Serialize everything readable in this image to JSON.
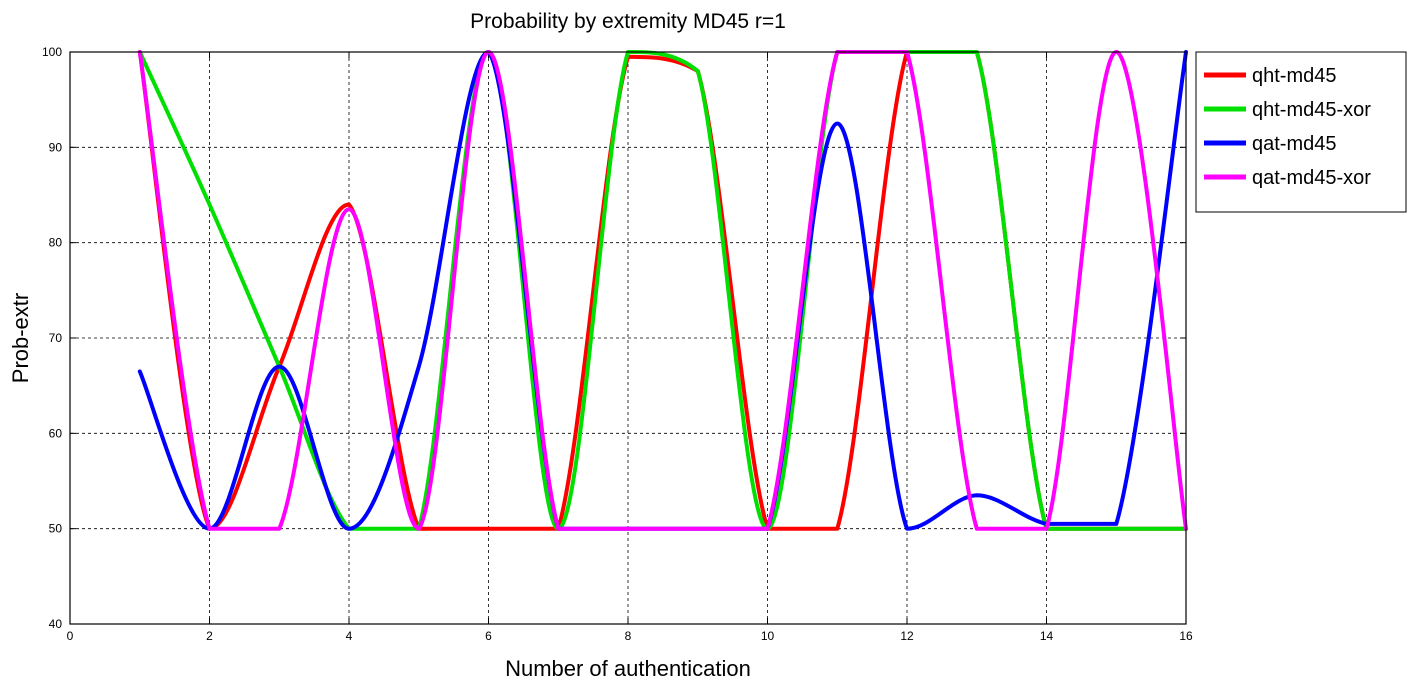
{
  "chart_data": {
    "type": "line",
    "title": "Probability by extremity  MD45 r=1",
    "xlabel": "Number of authentication",
    "ylabel": "Prob-extr",
    "xlim": [
      0,
      16
    ],
    "ylim": [
      40,
      100
    ],
    "xticks": [
      0,
      2,
      4,
      6,
      8,
      10,
      12,
      14,
      16
    ],
    "yticks": [
      40,
      50,
      60,
      70,
      80,
      90,
      100
    ],
    "grid": true,
    "legend_position": "top-right, outside plot",
    "series": [
      {
        "name": "qht-md45",
        "color": "#ff0000",
        "x": [
          1,
          2,
          3,
          4,
          5,
          6,
          7,
          8,
          9,
          10,
          11,
          12,
          13,
          14,
          15,
          16
        ],
        "y": [
          100,
          50,
          67,
          84,
          50,
          50,
          50,
          99.5,
          98,
          50,
          50,
          100,
          100,
          50,
          50,
          50
        ]
      },
      {
        "name": "qht-md45-xor",
        "color": "#00e000",
        "x": [
          1,
          2,
          3,
          4,
          5,
          6,
          7,
          8,
          9,
          10,
          11,
          12,
          13,
          14,
          15,
          16
        ],
        "y": [
          100,
          84,
          67,
          50,
          50,
          100,
          50,
          100,
          98,
          50,
          100,
          100,
          100,
          50,
          50,
          50
        ]
      },
      {
        "name": "qat-md45",
        "color": "#0000ff",
        "x": [
          1,
          2,
          3,
          4,
          5,
          6,
          7,
          8,
          9,
          10,
          11,
          12,
          13,
          14,
          15,
          16
        ],
        "y": [
          66.5,
          50,
          67,
          50,
          67,
          100,
          50,
          50,
          50,
          50,
          92.5,
          50,
          53.5,
          50.5,
          50.5,
          100
        ]
      },
      {
        "name": "qat-md45-xor",
        "color": "#ff00ff",
        "x": [
          1,
          2,
          3,
          4,
          5,
          6,
          7,
          8,
          9,
          10,
          11,
          12,
          13,
          14,
          15,
          16
        ],
        "y": [
          100,
          50,
          50,
          83.5,
          50,
          100,
          50,
          50,
          50,
          50,
          100,
          100,
          50,
          50,
          100,
          50
        ]
      }
    ]
  }
}
